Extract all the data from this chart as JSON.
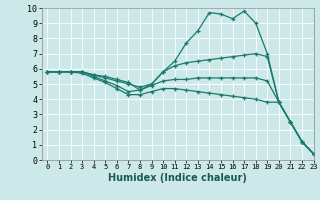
{
  "xlabel": "Humidex (Indice chaleur)",
  "background_color": "#cce8e8",
  "grid_color": "#ffffff",
  "line_color": "#1a7a6e",
  "xlim": [
    -0.5,
    23
  ],
  "ylim": [
    0,
    10
  ],
  "xticks": [
    0,
    1,
    2,
    3,
    4,
    5,
    6,
    7,
    8,
    9,
    10,
    11,
    12,
    13,
    14,
    15,
    16,
    17,
    18,
    19,
    20,
    21,
    22,
    23
  ],
  "yticks": [
    0,
    1,
    2,
    3,
    4,
    5,
    6,
    7,
    8,
    9,
    10
  ],
  "series": [
    {
      "x": [
        0,
        1,
        2,
        3,
        4,
        5,
        6,
        7,
        8,
        9,
        10,
        11,
        12,
        13,
        14,
        15,
        16,
        17,
        18,
        19,
        20,
        21,
        22,
        23
      ],
      "y": [
        5.8,
        5.8,
        5.8,
        5.8,
        5.6,
        5.5,
        5.3,
        5.1,
        4.6,
        5.0,
        5.8,
        6.5,
        7.7,
        8.5,
        9.7,
        9.6,
        9.3,
        9.8,
        9.0,
        7.0,
        3.8,
        2.5,
        1.2,
        0.4
      ]
    },
    {
      "x": [
        0,
        1,
        2,
        3,
        4,
        5,
        6,
        7,
        8,
        9,
        10,
        11,
        12,
        13,
        14,
        15,
        16,
        17,
        18,
        19,
        20,
        21,
        22,
        23
      ],
      "y": [
        5.8,
        5.8,
        5.8,
        5.8,
        5.6,
        5.4,
        5.2,
        5.0,
        4.8,
        5.0,
        5.8,
        6.2,
        6.4,
        6.5,
        6.6,
        6.7,
        6.8,
        6.9,
        7.0,
        6.8,
        3.8,
        2.5,
        1.2,
        0.4
      ]
    },
    {
      "x": [
        0,
        1,
        2,
        3,
        4,
        5,
        6,
        7,
        8,
        9,
        10,
        11,
        12,
        13,
        14,
        15,
        16,
        17,
        18,
        19,
        20,
        21,
        22,
        23
      ],
      "y": [
        5.8,
        5.8,
        5.8,
        5.8,
        5.5,
        5.2,
        4.9,
        4.5,
        4.6,
        4.9,
        5.2,
        5.3,
        5.3,
        5.4,
        5.4,
        5.4,
        5.4,
        5.4,
        5.4,
        5.2,
        3.8,
        2.5,
        1.2,
        0.4
      ]
    },
    {
      "x": [
        0,
        1,
        2,
        3,
        4,
        5,
        6,
        7,
        8,
        9,
        10,
        11,
        12,
        13,
        14,
        15,
        16,
        17,
        18,
        19,
        20,
        21,
        22,
        23
      ],
      "y": [
        5.8,
        5.8,
        5.8,
        5.7,
        5.4,
        5.1,
        4.7,
        4.3,
        4.3,
        4.5,
        4.7,
        4.7,
        4.6,
        4.5,
        4.4,
        4.3,
        4.2,
        4.1,
        4.0,
        3.8,
        3.8,
        2.5,
        1.2,
        0.4
      ]
    }
  ]
}
